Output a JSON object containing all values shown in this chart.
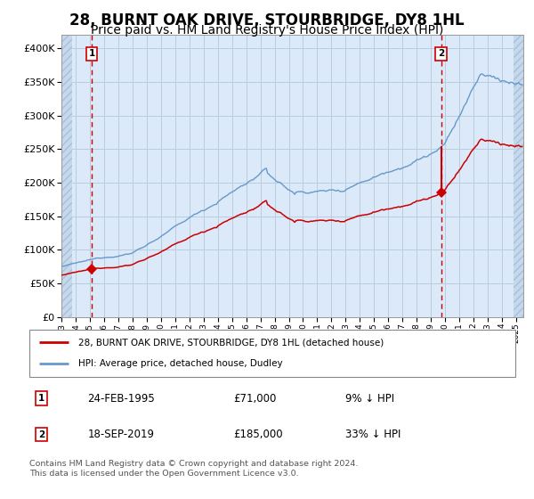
{
  "title": "28, BURNT OAK DRIVE, STOURBRIDGE, DY8 1HL",
  "subtitle": "Price paid vs. HM Land Registry's House Price Index (HPI)",
  "legend_line1": "28, BURNT OAK DRIVE, STOURBRIDGE, DY8 1HL (detached house)",
  "legend_line2": "HPI: Average price, detached house, Dudley",
  "annotation1_date": "24-FEB-1995",
  "annotation1_price": "£71,000",
  "annotation1_hpi": "9% ↓ HPI",
  "annotation2_date": "18-SEP-2019",
  "annotation2_price": "£185,000",
  "annotation2_hpi": "33% ↓ HPI",
  "footer": "Contains HM Land Registry data © Crown copyright and database right 2024.\nThis data is licensed under the Open Government Licence v3.0.",
  "sale1_x": 1995.14,
  "sale1_y": 71000,
  "sale2_x": 2019.72,
  "sale2_y": 185000,
  "ylim": [
    0,
    420000
  ],
  "yticks": [
    0,
    50000,
    100000,
    150000,
    200000,
    250000,
    300000,
    350000,
    400000
  ],
  "xlim_start": 1993.0,
  "xlim_end": 2025.5,
  "background_color": "#dce9f8",
  "hatch_color": "#c0d4e8",
  "grid_color": "#b8cde0",
  "red_color": "#cc0000",
  "blue_color": "#6699cc",
  "title_fontsize": 12,
  "subtitle_fontsize": 10
}
